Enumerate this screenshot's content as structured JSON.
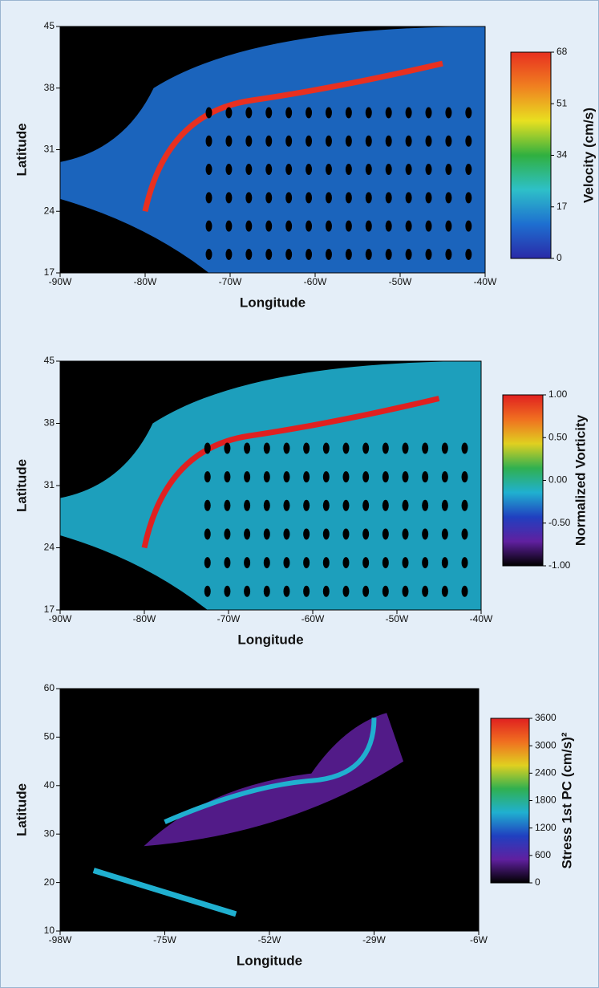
{
  "chart_data": [
    {
      "type": "map",
      "xlabel": "Longitude",
      "ylabel": "Latitude",
      "xlim": [
        -90,
        -40
      ],
      "xticks": [
        {
          "value": -90,
          "label": "-90W"
        },
        {
          "value": -80,
          "label": "-80W"
        },
        {
          "value": -70,
          "label": "-70W"
        },
        {
          "value": -60,
          "label": "-60W"
        },
        {
          "value": -50,
          "label": "-50W"
        },
        {
          "value": -40,
          "label": "-40W"
        }
      ],
      "ylim": [
        17,
        45
      ],
      "yticks": [
        17,
        24,
        31,
        38,
        45
      ],
      "colorbar_label": "Velocity (cm/s)",
      "clim": [
        0,
        68
      ],
      "cticks": [
        0,
        17,
        34,
        51,
        68
      ],
      "colormap": [
        "#2a2aa8",
        "#1e6fd0",
        "#2ec0c8",
        "#30b040",
        "#e8e020",
        "#f08020",
        "#e83020"
      ]
    },
    {
      "type": "map",
      "xlabel": "Longitude",
      "ylabel": "Latitude",
      "xlim": [
        -90,
        -40
      ],
      "xticks": [
        {
          "value": -90,
          "label": "-90W"
        },
        {
          "value": -80,
          "label": "-80W"
        },
        {
          "value": -70,
          "label": "-70W"
        },
        {
          "value": -60,
          "label": "-60W"
        },
        {
          "value": -50,
          "label": "-50W"
        },
        {
          "value": -40,
          "label": "-40W"
        }
      ],
      "ylim": [
        17,
        45
      ],
      "yticks": [
        17,
        24,
        31,
        38,
        45
      ],
      "colorbar_label": "Normalized Vorticity",
      "clim": [
        -1,
        1
      ],
      "cticks": [
        {
          "value": -1,
          "label": "-1.00"
        },
        {
          "value": -0.5,
          "label": "-0.50"
        },
        {
          "value": 0,
          "label": "0.00"
        },
        {
          "value": 0.5,
          "label": "0.50"
        },
        {
          "value": 1,
          "label": "1.00"
        }
      ],
      "colormap": [
        "#000000",
        "#6020a0",
        "#2040c0",
        "#20b0d0",
        "#30b050",
        "#e0d020",
        "#f07020",
        "#e02020"
      ]
    },
    {
      "type": "map",
      "xlabel": "Longitude",
      "ylabel": "Latitude",
      "xlim": [
        -98,
        -6
      ],
      "xticks": [
        {
          "value": -98,
          "label": "-98W"
        },
        {
          "value": -75,
          "label": "-75W"
        },
        {
          "value": -52,
          "label": "-52W"
        },
        {
          "value": -29,
          "label": "-29W"
        },
        {
          "value": -6,
          "label": "-6W"
        }
      ],
      "ylim": [
        10,
        60
      ],
      "yticks": [
        10,
        20,
        30,
        40,
        50,
        60
      ],
      "colorbar_label": "Stress 1st PC (cm/s)²",
      "clim": [
        0,
        3600
      ],
      "cticks": [
        0,
        600,
        1200,
        1800,
        2400,
        3000,
        3600
      ],
      "colormap": [
        "#000000",
        "#6020a0",
        "#2040c0",
        "#20b0d0",
        "#30b050",
        "#e0d020",
        "#f07020",
        "#e02020"
      ]
    }
  ]
}
